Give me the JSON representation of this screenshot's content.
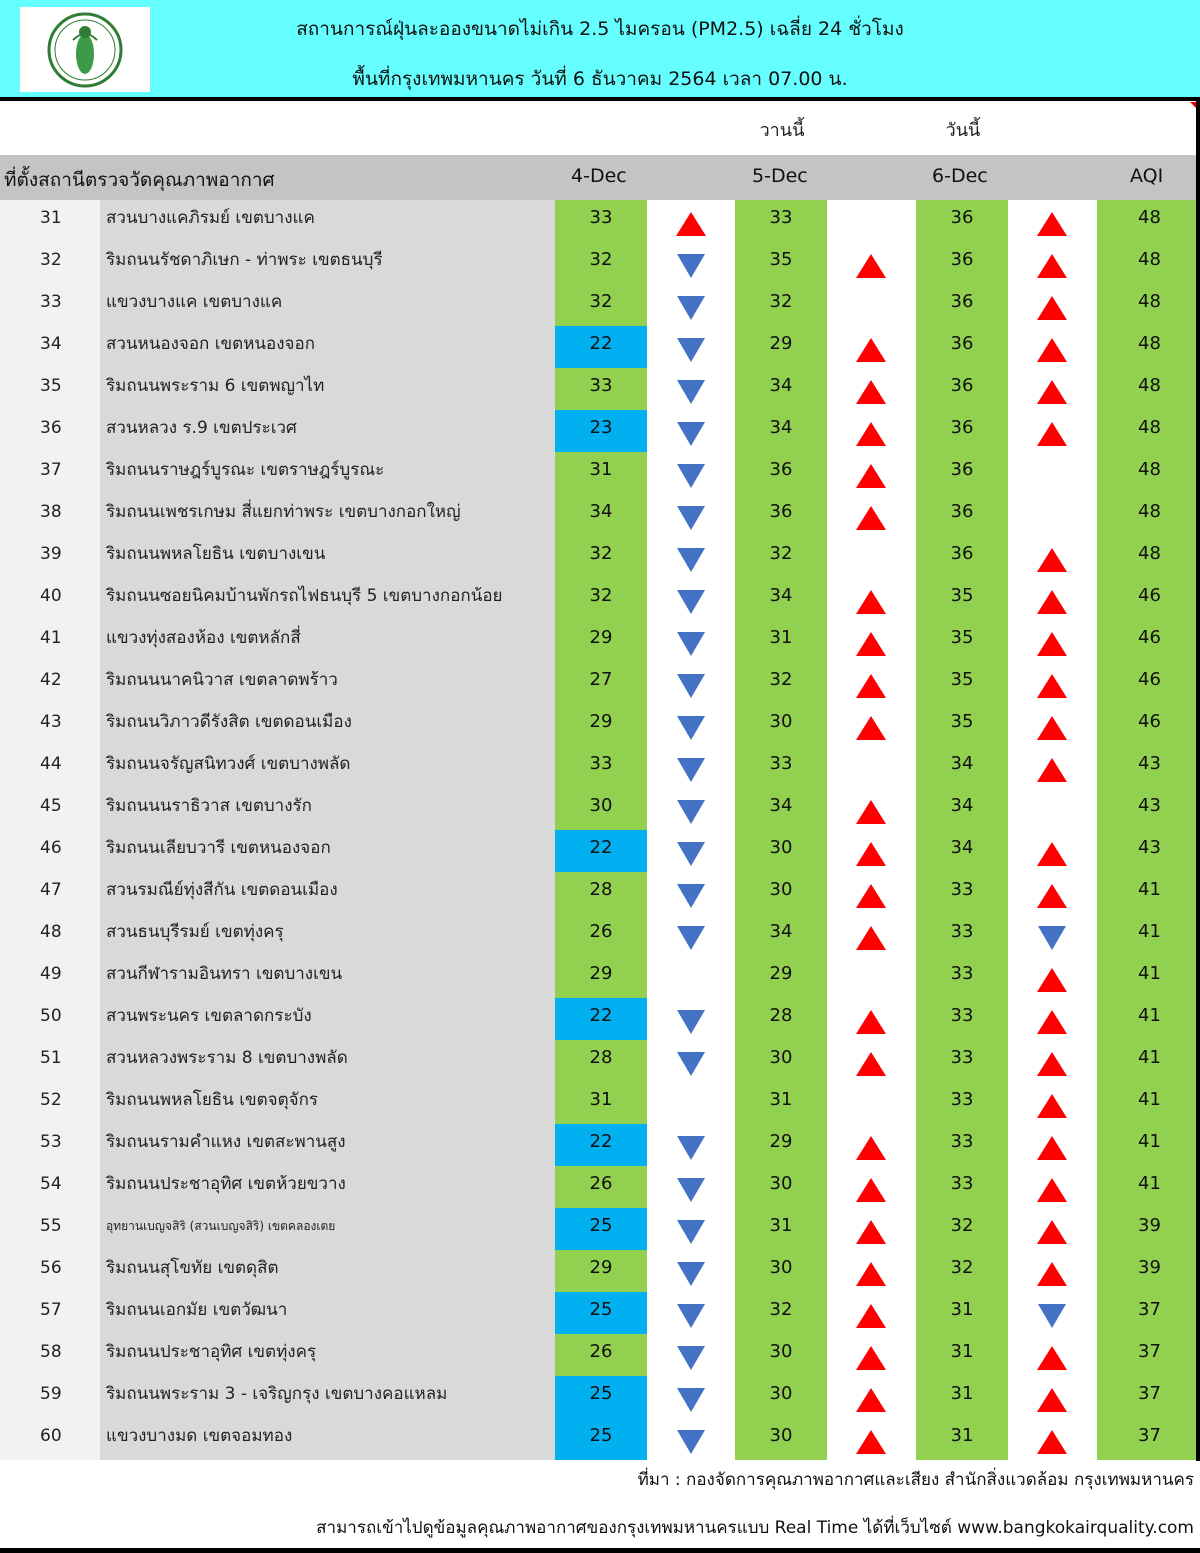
{
  "header": {
    "title_line1": "สถานการณ์ฝุ่นละอองขนาดไม่เกิน 2.5 ไมครอน (PM2.5) เฉลี่ย 24 ชั่วโมง",
    "title_line2": "พื้นที่กรุงเทพมหานคร วันที่ 6 ธันวาคม 2564 เวลา 07.00 น.",
    "logo": "bangkok-city-seal-icon",
    "bg_color": "#66ffff"
  },
  "sublabels": {
    "yesterday": "วานนี้",
    "today": "วันนี้"
  },
  "columns": {
    "station": "ที่ตั้งสถานีตรวจวัดคุณภาพอากาศ",
    "d1": "4-Dec",
    "d2": "5-Dec",
    "d3": "6-Dec",
    "aqi": "AQI"
  },
  "colors": {
    "good_green": "#92d050",
    "very_good_blue": "#00b0f0",
    "arrow_up": "#ff0000",
    "arrow_down": "#4472c4"
  },
  "rows": [
    {
      "no": "31",
      "name": "สวนบางแคภิรมย์ เขตบางแค",
      "d1": "33",
      "a1": "up",
      "d2": "33",
      "a2": "",
      "d3": "36",
      "a3": "up",
      "aqi": "48"
    },
    {
      "no": "32",
      "name": "ริมถนนรัชดาภิเษก - ท่าพระ เขตธนบุรี",
      "d1": "32",
      "a1": "down",
      "d2": "35",
      "a2": "up",
      "d3": "36",
      "a3": "up",
      "aqi": "48"
    },
    {
      "no": "33",
      "name": "แขวงบางแค เขตบางแค",
      "d1": "32",
      "a1": "down",
      "d2": "32",
      "a2": "",
      "d3": "36",
      "a3": "up",
      "aqi": "48"
    },
    {
      "no": "34",
      "name": "สวนหนองจอก เขตหนองจอก",
      "d1": "22",
      "a1": "down",
      "d2": "29",
      "a2": "up",
      "d3": "36",
      "a3": "up",
      "aqi": "48"
    },
    {
      "no": "35",
      "name": "ริมถนนพระราม 6 เขตพญาไท",
      "d1": "33",
      "a1": "down",
      "d2": "34",
      "a2": "up",
      "d3": "36",
      "a3": "up",
      "aqi": "48"
    },
    {
      "no": "36",
      "name": "สวนหลวง ร.9 เขตประเวศ",
      "d1": "23",
      "a1": "down",
      "d2": "34",
      "a2": "up",
      "d3": "36",
      "a3": "up",
      "aqi": "48"
    },
    {
      "no": "37",
      "name": "ริมถนนราษฎร์บูรณะ เขตราษฎร์บูรณะ",
      "d1": "31",
      "a1": "down",
      "d2": "36",
      "a2": "up",
      "d3": "36",
      "a3": "",
      "aqi": "48"
    },
    {
      "no": "38",
      "name": "ริมถนนเพชรเกษม สี่แยกท่าพระ เขตบางกอกใหญ่",
      "d1": "34",
      "a1": "down",
      "d2": "36",
      "a2": "up",
      "d3": "36",
      "a3": "",
      "aqi": "48"
    },
    {
      "no": "39",
      "name": "ริมถนนพหลโยธิน เขตบางเขน",
      "d1": "32",
      "a1": "down",
      "d2": "32",
      "a2": "",
      "d3": "36",
      "a3": "up",
      "aqi": "48"
    },
    {
      "no": "40",
      "name": "ริมถนนซอยนิคมบ้านพักรถไฟธนบุรี 5 เขตบางกอกน้อย",
      "d1": "32",
      "a1": "down",
      "d2": "34",
      "a2": "up",
      "d3": "35",
      "a3": "up",
      "aqi": "46"
    },
    {
      "no": "41",
      "name": "แขวงทุ่งสองห้อง เขตหลักสี่",
      "d1": "29",
      "a1": "down",
      "d2": "31",
      "a2": "up",
      "d3": "35",
      "a3": "up",
      "aqi": "46"
    },
    {
      "no": "42",
      "name": "ริมถนนนาคนิวาส เขตลาดพร้าว",
      "d1": "27",
      "a1": "down",
      "d2": "32",
      "a2": "up",
      "d3": "35",
      "a3": "up",
      "aqi": "46"
    },
    {
      "no": "43",
      "name": "ริมถนนวิภาวดีรังสิต เขตดอนเมือง",
      "d1": "29",
      "a1": "down",
      "d2": "30",
      "a2": "up",
      "d3": "35",
      "a3": "up",
      "aqi": "46"
    },
    {
      "no": "44",
      "name": "ริมถนนจรัญสนิทวงศ์ เขตบางพลัด",
      "d1": "33",
      "a1": "down",
      "d2": "33",
      "a2": "",
      "d3": "34",
      "a3": "up",
      "aqi": "43"
    },
    {
      "no": "45",
      "name": "ริมถนนนราธิวาส เขตบางรัก",
      "d1": "30",
      "a1": "down",
      "d2": "34",
      "a2": "up",
      "d3": "34",
      "a3": "",
      "aqi": "43"
    },
    {
      "no": "46",
      "name": "ริมถนนเลียบวารี เขตหนองจอก",
      "d1": "22",
      "a1": "down",
      "d2": "30",
      "a2": "up",
      "d3": "34",
      "a3": "up",
      "aqi": "43"
    },
    {
      "no": "47",
      "name": "สวนรมณีย์ทุ่งสีกัน เขตดอนเมือง",
      "d1": "28",
      "a1": "down",
      "d2": "30",
      "a2": "up",
      "d3": "33",
      "a3": "up",
      "aqi": "41"
    },
    {
      "no": "48",
      "name": "สวนธนบุรีรมย์ เขตทุ่งครุ",
      "d1": "26",
      "a1": "down",
      "d2": "34",
      "a2": "up",
      "d3": "33",
      "a3": "down",
      "aqi": "41"
    },
    {
      "no": "49",
      "name": "สวนกีฬารามอินทรา เขตบางเขน",
      "d1": "29",
      "a1": "",
      "d2": "29",
      "a2": "",
      "d3": "33",
      "a3": "up",
      "aqi": "41"
    },
    {
      "no": "50",
      "name": "สวนพระนคร เขตลาดกระบัง",
      "d1": "22",
      "a1": "down",
      "d2": "28",
      "a2": "up",
      "d3": "33",
      "a3": "up",
      "aqi": "41"
    },
    {
      "no": "51",
      "name": "สวนหลวงพระราม 8 เขตบางพลัด",
      "d1": "28",
      "a1": "down",
      "d2": "30",
      "a2": "up",
      "d3": "33",
      "a3": "up",
      "aqi": "41"
    },
    {
      "no": "52",
      "name": "ริมถนนพหลโยธิน เขตจตุจักร",
      "d1": "31",
      "a1": "",
      "d2": "31",
      "a2": "",
      "d3": "33",
      "a3": "up",
      "aqi": "41"
    },
    {
      "no": "53",
      "name": "ริมถนนรามคำแหง เขตสะพานสูง",
      "d1": "22",
      "a1": "down",
      "d2": "29",
      "a2": "up",
      "d3": "33",
      "a3": "up",
      "aqi": "41"
    },
    {
      "no": "54",
      "name": "ริมถนนประชาอุทิศ เขตห้วยขวาง",
      "d1": "26",
      "a1": "down",
      "d2": "30",
      "a2": "up",
      "d3": "33",
      "a3": "up",
      "aqi": "41"
    },
    {
      "no": "55",
      "name": "อุทยานเบญจสิริ (สวนเบญจสิริ) เขตคลองเตย",
      "d1": "25",
      "a1": "down",
      "d2": "31",
      "a2": "up",
      "d3": "32",
      "a3": "up",
      "aqi": "39",
      "small": true
    },
    {
      "no": "56",
      "name": "ริมถนนสุโขทัย เขตดุสิต",
      "d1": "29",
      "a1": "down",
      "d2": "30",
      "a2": "up",
      "d3": "32",
      "a3": "up",
      "aqi": "39"
    },
    {
      "no": "57",
      "name": "ริมถนนเอกมัย เขตวัฒนา",
      "d1": "25",
      "a1": "down",
      "d2": "32",
      "a2": "up",
      "d3": "31",
      "a3": "down",
      "aqi": "37"
    },
    {
      "no": "58",
      "name": "ริมถนนประชาอุทิศ เขตทุ่งครุ",
      "d1": "26",
      "a1": "down",
      "d2": "30",
      "a2": "up",
      "d3": "31",
      "a3": "up",
      "aqi": "37"
    },
    {
      "no": "59",
      "name": "ริมถนนพระราม 3 - เจริญกรุง เขตบางคอแหลม",
      "d1": "25",
      "a1": "down",
      "d2": "30",
      "a2": "up",
      "d3": "31",
      "a3": "up",
      "aqi": "37"
    },
    {
      "no": "60",
      "name": "แขวงบางมด เขตจอมทอง",
      "d1": "25",
      "a1": "down",
      "d2": "30",
      "a2": "up",
      "d3": "31",
      "a3": "up",
      "aqi": "37"
    }
  ],
  "footer": {
    "source": "ที่มา : กองจัดการคุณภาพอากาศและเสียง สำนักสิ่งแวดล้อม กรุงเทพมหานคร",
    "realtime": "สามารถเข้าไปดูข้อมูลคุณภาพอากาศของกรุงเทพมหานครแบบ Real Time ได้ที่เว็บไซต์ www.bangkokairquality.com"
  }
}
